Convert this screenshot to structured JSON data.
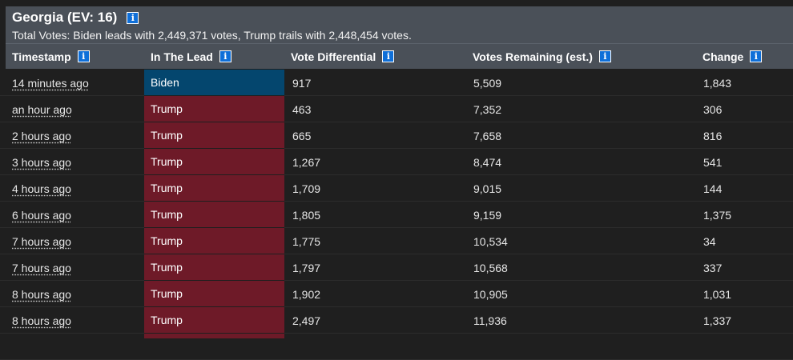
{
  "header": {
    "title": "Georgia (EV: 16)",
    "summary": "Total Votes: Biden leads with 2,449,371 votes, Trump trails with 2,448,454 votes.",
    "info_icon": "i"
  },
  "columns": {
    "timestamp": "Timestamp",
    "lead": "In The Lead",
    "differential": "Vote Differential",
    "remaining": "Votes Remaining (est.)",
    "change": "Change"
  },
  "colors": {
    "biden": "#04466e",
    "trump": "#6e1a28",
    "header_bg": "#4a5058",
    "info_icon": "#0f6fd8"
  },
  "rows": [
    {
      "timestamp": "14 minutes ago",
      "lead": "Biden",
      "party": "biden",
      "differential": "917",
      "remaining": "5,509",
      "change": "1,843"
    },
    {
      "timestamp": "an hour ago",
      "lead": "Trump",
      "party": "trump",
      "differential": "463",
      "remaining": "7,352",
      "change": "306"
    },
    {
      "timestamp": "2 hours ago",
      "lead": "Trump",
      "party": "trump",
      "differential": "665",
      "remaining": "7,658",
      "change": "816"
    },
    {
      "timestamp": "3 hours ago",
      "lead": "Trump",
      "party": "trump",
      "differential": "1,267",
      "remaining": "8,474",
      "change": "541"
    },
    {
      "timestamp": "4 hours ago",
      "lead": "Trump",
      "party": "trump",
      "differential": "1,709",
      "remaining": "9,015",
      "change": "144"
    },
    {
      "timestamp": "6 hours ago",
      "lead": "Trump",
      "party": "trump",
      "differential": "1,805",
      "remaining": "9,159",
      "change": "1,375"
    },
    {
      "timestamp": "7 hours ago",
      "lead": "Trump",
      "party": "trump",
      "differential": "1,775",
      "remaining": "10,534",
      "change": "34"
    },
    {
      "timestamp": "7 hours ago",
      "lead": "Trump",
      "party": "trump",
      "differential": "1,797",
      "remaining": "10,568",
      "change": "337"
    },
    {
      "timestamp": "8 hours ago",
      "lead": "Trump",
      "party": "trump",
      "differential": "1,902",
      "remaining": "10,905",
      "change": "1,031"
    },
    {
      "timestamp": "8 hours ago",
      "lead": "Trump",
      "party": "trump",
      "differential": "2,497",
      "remaining": "11,936",
      "change": "1,337"
    }
  ]
}
